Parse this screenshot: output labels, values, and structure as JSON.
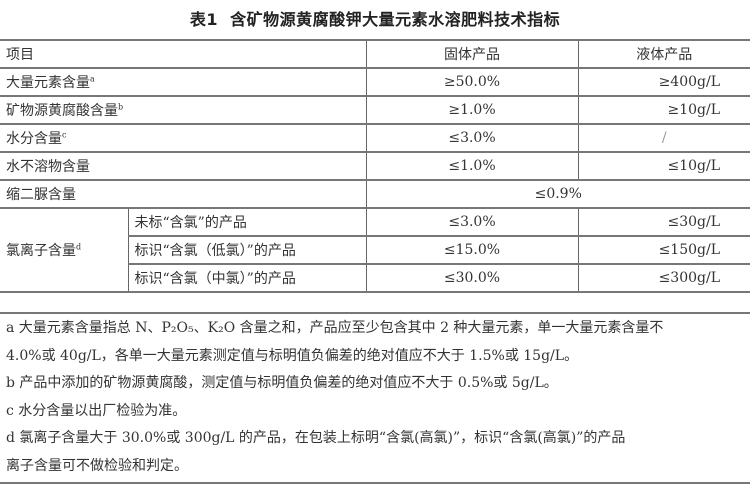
{
  "title": {
    "label": "表1",
    "text": "含矿物源黄腐酸钾大量元素水溶肥料技术指标"
  },
  "table": {
    "headers": [
      "项目",
      "固体产品",
      "液体产品"
    ],
    "rows": [
      {
        "item": "大量元素含量",
        "note": "a",
        "solid": "≥50.0%",
        "liquid": "≥400g/L"
      },
      {
        "item": "矿物源黄腐酸含量",
        "note": "b",
        "solid": "≥1.0%",
        "liquid": "≥10g/L"
      },
      {
        "item": "水分含量",
        "note": "c",
        "solid": "≤3.0%",
        "liquid": "/"
      },
      {
        "item": "水不溶物含量",
        "note": "",
        "solid": "≤1.0%",
        "liquid": "≤10g/L"
      },
      {
        "item": "缩二脲含量",
        "note": "",
        "merged": "≤0.9%"
      }
    ],
    "chloride": {
      "item": "氯离子含量",
      "note": "d",
      "subrows": [
        {
          "label": "未标“含氯”的产品",
          "solid": "≤3.0%",
          "liquid": "≤30g/L"
        },
        {
          "label": "标识“含氯（低氯）”的产品",
          "solid": "≤15.0%",
          "liquid": "≤150g/L"
        },
        {
          "label": "标识“含氯（中氯）”的产品",
          "solid": "≤30.0%",
          "liquid": "≤300g/L"
        }
      ]
    }
  },
  "notes": [
    "a 大量元素含量指总 N、P₂O₅、K₂O 含量之和，产品应至少包含其中 2 种大量元素，单一大量元素含量不",
    "4.0%或 40g/L，各单一大量元素测定值与标明值负偏差的绝对值应不大于 1.5%或 15g/L。",
    "b 产品中添加的矿物源黄腐酸，测定值与标明值负偏差的绝对值应不大于 0.5%或 5g/L。",
    "c 水分含量以出厂检验为准。",
    "d 氯离子含量大于 30.0%或 300g/L 的产品，在包装上标明“含氯(高氯)”，标识“含氯(高氯)”的产品",
    "离子含量可不做检验和判定。"
  ]
}
